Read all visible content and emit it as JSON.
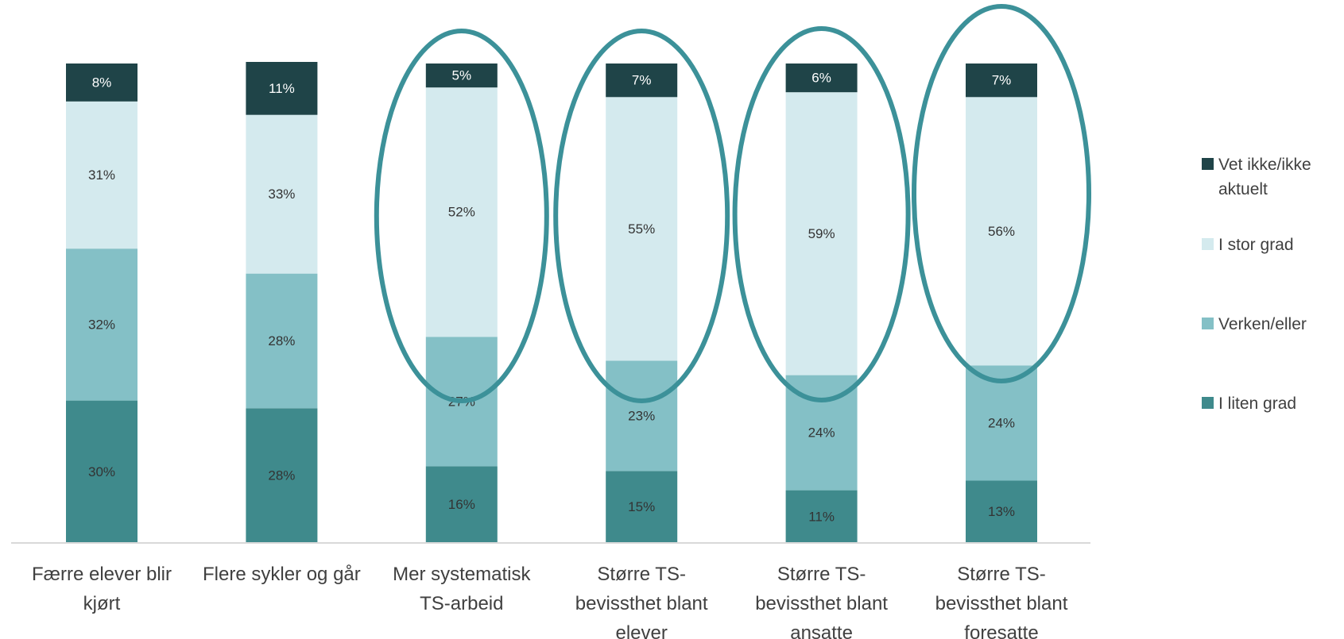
{
  "chart_data": {
    "type": "bar",
    "stacked": true,
    "percent": true,
    "categories": [
      [
        "Færre elever blir",
        "kjørt"
      ],
      [
        "Flere sykler og går"
      ],
      [
        "Mer systematisk",
        "TS-arbeid"
      ],
      [
        "Større TS-",
        "bevissthet blant",
        "elever"
      ],
      [
        "Større TS-",
        "bevissthet blant",
        "ansatte"
      ],
      [
        "Større TS-",
        "bevissthet blant",
        "foresatte"
      ]
    ],
    "series": [
      {
        "name": "I liten grad",
        "color": "#3f8a8c",
        "label_color": "#333333",
        "values": [
          30,
          28,
          16,
          15,
          11,
          13
        ]
      },
      {
        "name": "Verken/eller",
        "color": "#84c0c6",
        "label_color": "#333333",
        "values": [
          32,
          28,
          27,
          23,
          24,
          24
        ]
      },
      {
        "name": "I stor grad",
        "color": "#d4eaee",
        "label_color": "#333333",
        "values": [
          31,
          33,
          52,
          55,
          59,
          56
        ]
      },
      {
        "name": "Vet ikke/ikke aktuelt",
        "color": "#1f4448",
        "label_color": "#ffffff",
        "values": [
          8,
          11,
          5,
          7,
          6,
          7
        ]
      }
    ],
    "legend_lines": [
      [
        "Vet ikke/ikke",
        "aktuelt"
      ],
      [
        "I stor grad"
      ],
      [
        "Verken/eller"
      ],
      [
        "I liten grad"
      ]
    ],
    "legend_position": "right",
    "value_suffix": "%",
    "ylim": [
      0,
      100
    ],
    "grid": false,
    "highlighted_categories": [
      2,
      3,
      4,
      5
    ],
    "highlight_color": "#3c9199"
  }
}
